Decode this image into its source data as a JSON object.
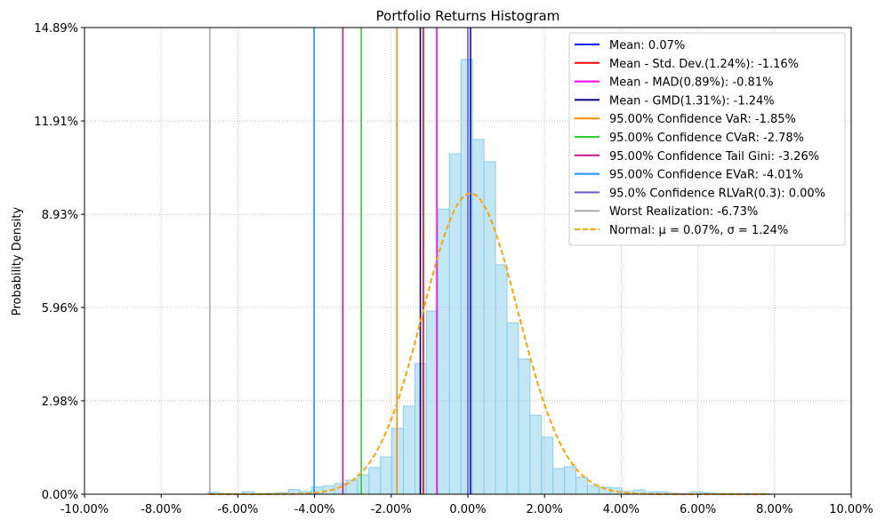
{
  "chart_data": {
    "type": "bar",
    "title": "Portfolio Returns Histogram",
    "xlabel": "",
    "ylabel": "Probability Density",
    "xlim": [
      -10,
      10
    ],
    "ylim": [
      0,
      14.89
    ],
    "grid": true,
    "legend_placement": "top-right",
    "x_ticks": [
      "-10.00%",
      "-8.00%",
      "-6.00%",
      "-4.00%",
      "-2.00%",
      "0.00%",
      "2.00%",
      "4.00%",
      "6.00%",
      "8.00%",
      "10.00%"
    ],
    "x_tick_values": [
      -10,
      -8,
      -6,
      -4,
      -2,
      0,
      2,
      4,
      6,
      8,
      10
    ],
    "y_ticks": [
      "0.00%",
      "2.98%",
      "5.96%",
      "8.93%",
      "11.91%",
      "14.89%"
    ],
    "y_tick_values": [
      0,
      2.98,
      5.96,
      8.93,
      11.91,
      14.89
    ],
    "bin_width": 0.3,
    "histogram": {
      "color": "#87ceeb",
      "bin_centers": [
        -6.63,
        -6.33,
        -6.03,
        -5.73,
        -5.43,
        -5.13,
        -4.83,
        -4.53,
        -4.23,
        -3.93,
        -3.63,
        -3.33,
        -3.03,
        -2.73,
        -2.43,
        -2.13,
        -1.83,
        -1.53,
        -1.23,
        -0.93,
        -0.63,
        -0.33,
        -0.03,
        0.27,
        0.57,
        0.87,
        1.17,
        1.47,
        1.77,
        2.07,
        2.37,
        2.67,
        2.97,
        3.27,
        3.57,
        3.87,
        4.17,
        4.47,
        4.77,
        5.07,
        5.37,
        5.67,
        5.97,
        6.27,
        6.57,
        6.87,
        7.17,
        7.47,
        7.77
      ],
      "values": [
        0.06,
        0.02,
        0.02,
        0.08,
        0.02,
        0.03,
        0.05,
        0.15,
        0.09,
        0.23,
        0.26,
        0.34,
        0.45,
        0.62,
        0.85,
        1.19,
        2.1,
        2.81,
        4.17,
        5.84,
        9.1,
        10.86,
        13.87,
        11.32,
        10.61,
        7.32,
        5.47,
        4.31,
        2.52,
        1.82,
        0.82,
        0.88,
        0.54,
        0.28,
        0.23,
        0.2,
        0.09,
        0.14,
        0.08,
        0.08,
        0.03,
        0.02,
        0.08,
        0.05,
        0.02,
        0.02,
        0.02,
        0.02,
        0.02
      ]
    },
    "normal": {
      "label": "Normal: μ = 0.07%, σ = 1.24%",
      "mean": 0.07,
      "std": 1.24,
      "peak": 9.6,
      "color": "#ffa500"
    },
    "lines": [
      {
        "label": "Mean: 0.07%",
        "x": 0.07,
        "color": "#0000ff"
      },
      {
        "label": "Mean - Std. Dev.(1.24%): -1.16%",
        "x": -1.16,
        "color": "#ff0000"
      },
      {
        "label": "Mean - MAD(0.89%): -0.81%",
        "x": -0.81,
        "color": "#ff00ff"
      },
      {
        "label": "Mean - GMD(1.31%): -1.24%",
        "x": -1.24,
        "color": "#000080"
      },
      {
        "label": "95.00% Confidence VaR: -1.85%",
        "x": -1.85,
        "color": "#ff8c00"
      },
      {
        "label": "95.00% Confidence CVaR: -2.78%",
        "x": -2.78,
        "color": "#32cd32"
      },
      {
        "label": "95.00% Confidence Tail Gini: -3.26%",
        "x": -3.26,
        "color": "#c71585"
      },
      {
        "label": "95.00% Confidence EVaR: -4.01%",
        "x": -4.01,
        "color": "#1e90ff"
      },
      {
        "label": "95.0% Confidence RLVaR(0.3): 0.00%",
        "x": 0.0,
        "color": "#6a5acd"
      },
      {
        "label": "Worst Realization: -6.73%",
        "x": -6.73,
        "color": "#a9a9a9"
      }
    ]
  }
}
